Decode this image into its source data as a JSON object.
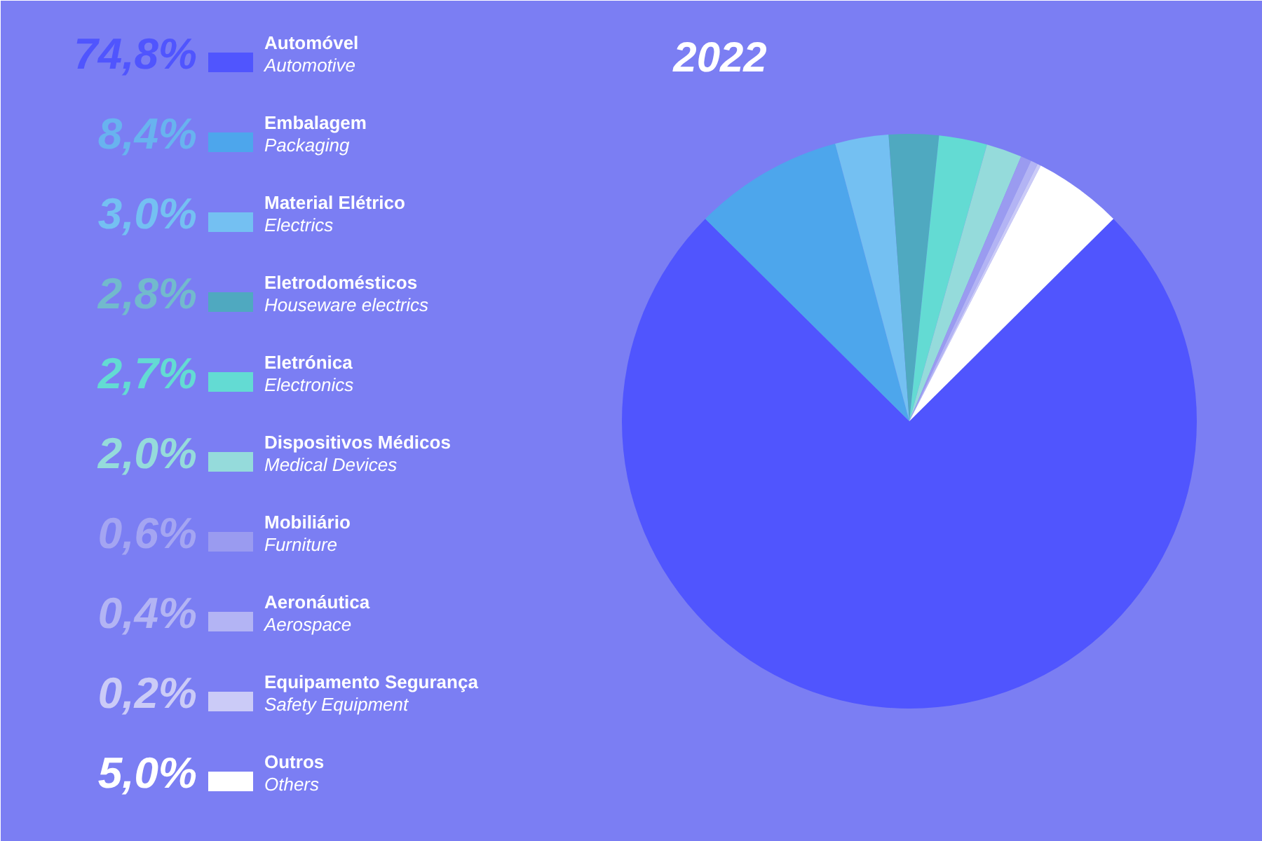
{
  "chart_data": {
    "type": "pie",
    "title": "2022",
    "categories": [
      "Automóvel\nAutomotive",
      "Embalagem\nPackaging",
      "Material Elétrico\nElectrics",
      "Eletrodomésticos\nHouseware electrics",
      "Eletrónica\nElectronics",
      "Dispositivos Médicos\nMedical Devices",
      "Mobiliário\nFurniture",
      "Aeronáutica\nAerospace",
      "Equipamento Segurança\nSafety Equipment",
      "Outros\nOthers"
    ],
    "values": [
      74.8,
      8.4,
      3.0,
      2.8,
      2.7,
      2.0,
      0.6,
      0.4,
      0.2,
      5.0
    ],
    "colors": [
      "#5055fe",
      "#4da6ec",
      "#74c0f2",
      "#4fa9c0",
      "#63dbd3",
      "#95dbdb",
      "#9a9bf0",
      "#b3b4f4",
      "#cbcbf7",
      "#ffffff"
    ],
    "value_labels": [
      "74,8%",
      "8,4%",
      "3,0%",
      "2,8%",
      "2,7%",
      "2,0%",
      "0,6%",
      "0,4%",
      "0,2%",
      "5,0%"
    ],
    "legend": "left"
  }
}
